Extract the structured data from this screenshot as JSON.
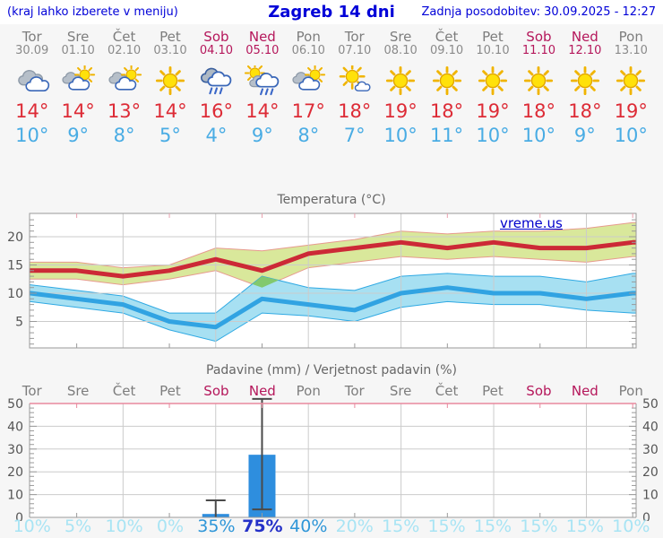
{
  "header": {
    "left_note": "(kraj lahko izberete v meniju)",
    "title": "Zagreb 14 dni",
    "updated": "Zadnja posodobitev: 30.09.2025 - 12:27"
  },
  "colors": {
    "header_blue": "#0000d8",
    "day_gray": "#7d7d7d",
    "date_gray": "#8a8a8a",
    "weekend": "#b5175b",
    "tmax_red": "#dd2b36",
    "tmin_blue": "#49ace4",
    "prob_low": "#a8e4f4",
    "prob_mid": "#2f96d8",
    "prob_high": "#2531c8"
  },
  "days": [
    {
      "name": "Tor",
      "date": "30.09",
      "weekend": false,
      "icon": "cloudy",
      "tmax": 14,
      "tmin": 10
    },
    {
      "name": "Sre",
      "date": "01.10",
      "weekend": false,
      "icon": "partly",
      "tmax": 14,
      "tmin": 9
    },
    {
      "name": "Čet",
      "date": "02.10",
      "weekend": false,
      "icon": "partly",
      "tmax": 13,
      "tmin": 8
    },
    {
      "name": "Pet",
      "date": "03.10",
      "weekend": false,
      "icon": "sunny",
      "tmax": 14,
      "tmin": 5
    },
    {
      "name": "Sob",
      "date": "04.10",
      "weekend": true,
      "icon": "rain",
      "tmax": 16,
      "tmin": 4
    },
    {
      "name": "Ned",
      "date": "05.10",
      "weekend": true,
      "icon": "sun-rain",
      "tmax": 14,
      "tmin": 9
    },
    {
      "name": "Pon",
      "date": "06.10",
      "weekend": false,
      "icon": "partly",
      "tmax": 17,
      "tmin": 8
    },
    {
      "name": "Tor",
      "date": "07.10",
      "weekend": false,
      "icon": "sun-cloud",
      "tmax": 18,
      "tmin": 7
    },
    {
      "name": "Sre",
      "date": "08.10",
      "weekend": false,
      "icon": "sunny",
      "tmax": 19,
      "tmin": 10
    },
    {
      "name": "Čet",
      "date": "09.10",
      "weekend": false,
      "icon": "sunny",
      "tmax": 18,
      "tmin": 11
    },
    {
      "name": "Pet",
      "date": "10.10",
      "weekend": false,
      "icon": "sunny",
      "tmax": 19,
      "tmin": 10
    },
    {
      "name": "Sob",
      "date": "11.10",
      "weekend": true,
      "icon": "sunny",
      "tmax": 18,
      "tmin": 10
    },
    {
      "name": "Ned",
      "date": "12.10",
      "weekend": true,
      "icon": "sunny",
      "tmax": 18,
      "tmin": 9
    },
    {
      "name": "Pon",
      "date": "13.10",
      "weekend": false,
      "icon": "sunny",
      "tmax": 19,
      "tmin": 10
    }
  ],
  "chart_data": [
    {
      "type": "line",
      "title": "Temperatura (°C)",
      "watermark": "vreme.us",
      "categories": [
        "30.09",
        "01.10",
        "02.10",
        "03.10",
        "04.10",
        "05.10",
        "06.10",
        "07.10",
        "08.10",
        "09.10",
        "10.10",
        "11.10",
        "12.10",
        "13.10"
      ],
      "ylim": [
        0,
        24
      ],
      "yticks": [
        5,
        10,
        15,
        20
      ],
      "series": [
        {
          "name": "max",
          "values": [
            14,
            14,
            13,
            14,
            16,
            14,
            17,
            18,
            19,
            18,
            19,
            18,
            18,
            19
          ]
        },
        {
          "name": "max_band_upper",
          "values": [
            15.5,
            15.5,
            14.5,
            15,
            18,
            17.5,
            18.5,
            19.5,
            21,
            20.5,
            21,
            21,
            21.5,
            22.5
          ]
        },
        {
          "name": "max_band_lower",
          "values": [
            12.5,
            12.5,
            11.5,
            12.5,
            14,
            11,
            14.5,
            15.5,
            16.5,
            16,
            16.5,
            16,
            15.5,
            16.5
          ]
        },
        {
          "name": "min",
          "values": [
            10,
            9,
            8,
            5,
            4,
            9,
            8,
            7,
            10,
            11,
            10,
            10,
            9,
            10
          ]
        },
        {
          "name": "min_band_upper",
          "values": [
            11.5,
            10.5,
            9.5,
            6.5,
            6.5,
            13,
            11,
            10.5,
            13,
            13.5,
            13,
            13,
            12,
            13.5
          ]
        },
        {
          "name": "min_band_lower",
          "values": [
            8.5,
            7.5,
            6.5,
            3.5,
            1.5,
            6.5,
            6,
            5,
            7.5,
            8.5,
            8,
            8,
            7,
            6.5
          ]
        }
      ],
      "overlap_polygon": [
        [
          4.79,
          11.6
        ],
        [
          5,
          13
        ],
        [
          5.36,
          12.3
        ],
        [
          5,
          11
        ]
      ],
      "colors": {
        "max_line": "#cc2936",
        "max_band": "#d9e89b",
        "max_band_edge": "#e79a8e",
        "min_line": "#31a3e2",
        "min_band": "#a7e0f2",
        "min_band_edge": "#2fa9e3",
        "overlap": "#82c96f",
        "grid": "#cbcbcb",
        "frame": "#9a9a9a",
        "label": "#555555"
      }
    },
    {
      "type": "bar",
      "title": "Padavine (mm) / Verjetnost padavin (%)",
      "categories": [
        "Tor",
        "Sre",
        "Čet",
        "Pet",
        "Sob",
        "Ned",
        "Pon",
        "Tor",
        "Sre",
        "Čet",
        "Pet",
        "Sob",
        "Ned",
        "Pon"
      ],
      "ylim": [
        0,
        50
      ],
      "yticks": [
        0,
        10,
        20,
        30,
        40,
        50
      ],
      "bars": [
        {
          "day_index": 4,
          "value": 1.5,
          "whisker": [
            0,
            7.5
          ],
          "caps": [
            7.5
          ]
        },
        {
          "day_index": 5,
          "value": 27.5,
          "whisker": [
            3.5,
            52
          ],
          "caps": [
            3.5,
            52
          ]
        }
      ],
      "probabilities_percent": [
        10,
        5,
        10,
        0,
        35,
        75,
        40,
        20,
        15,
        15,
        15,
        15,
        15,
        10
      ],
      "colors": {
        "bar": "#2e8ede",
        "whisker": "#4a4a4a",
        "top_border": "#e8889d",
        "grid": "#cbcbcb",
        "frame": "#9a9a9a",
        "label": "#555555"
      }
    }
  ]
}
